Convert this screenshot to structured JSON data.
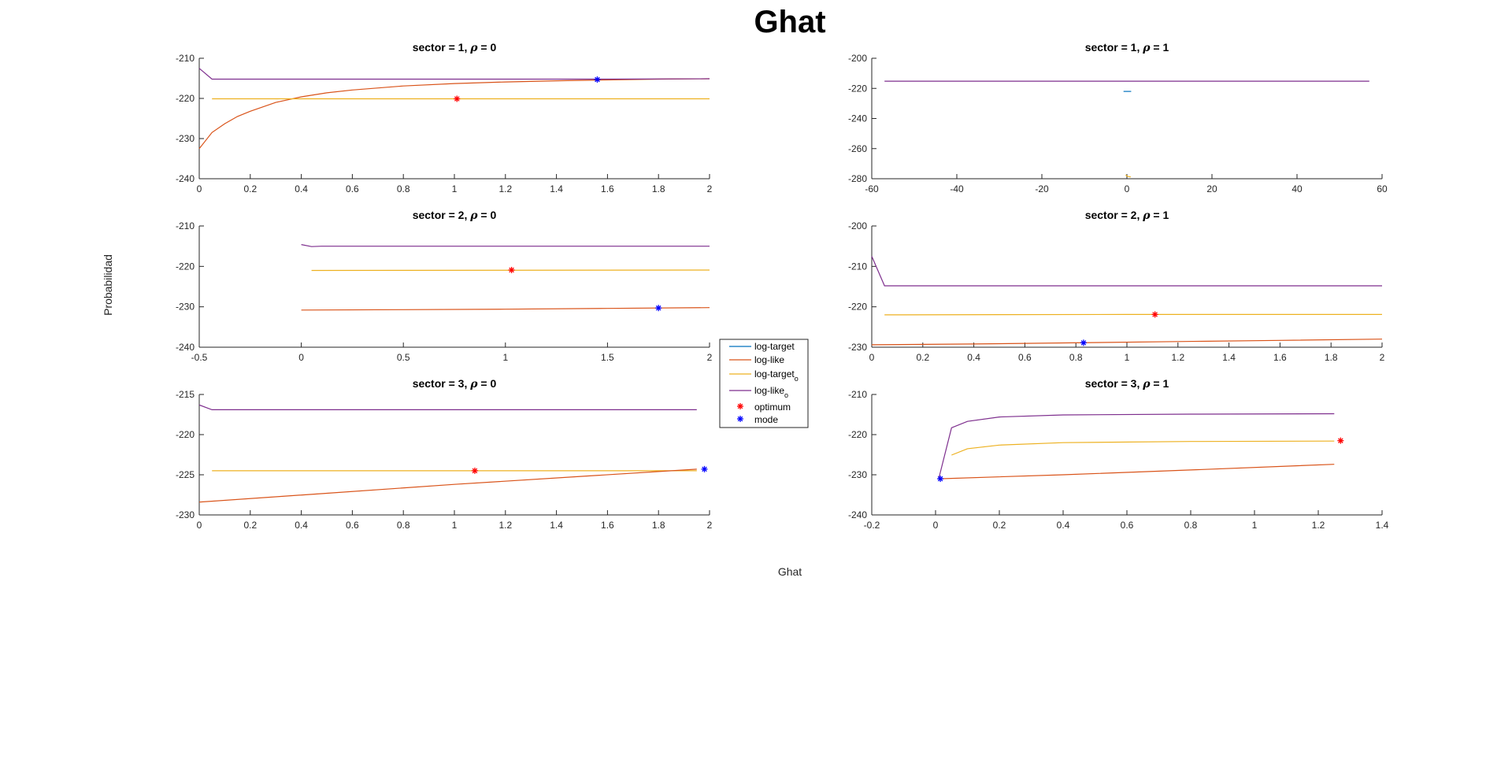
{
  "figure": {
    "title": "Ghat",
    "xlabel": "Ghat",
    "ylabel": "Probabilidad"
  },
  "colors": {
    "log_target": "#0072BD",
    "log_like": "#D95319",
    "log_target_o": "#EDB120",
    "log_like_o": "#7E2F8E",
    "optimum": "#FF0000",
    "mode": "#0000FF",
    "axis": "#262626"
  },
  "legend": {
    "entries": [
      {
        "key": "log_target",
        "label": "log-target",
        "sub": ""
      },
      {
        "key": "log_like",
        "label": "log-like",
        "sub": ""
      },
      {
        "key": "log_target_o",
        "label": "log-target",
        "sub": "o"
      },
      {
        "key": "log_like_o",
        "label": "log-like",
        "sub": "o"
      },
      {
        "key": "optimum",
        "label": "optimum",
        "sub": ""
      },
      {
        "key": "mode",
        "label": "mode",
        "sub": ""
      }
    ]
  },
  "chart_data": [
    {
      "type": "line",
      "title_prefix": "sector = 1, ",
      "title_symbol": "ρ",
      "title_suffix": " = 0",
      "xlim": [
        0,
        2
      ],
      "ylim": [
        -240,
        -210
      ],
      "xticks": [
        0,
        0.2,
        0.4,
        0.6,
        0.8,
        1,
        1.2,
        1.4,
        1.6,
        1.8,
        2
      ],
      "xtick_labels": [
        "0",
        "0.2",
        "0.4",
        "0.6",
        "0.8",
        "1",
        "1.2",
        "1.4",
        "1.6",
        "1.8",
        "2"
      ],
      "yticks": [
        -240,
        -230,
        -220,
        -210
      ],
      "ytick_labels": [
        "-240",
        "-230",
        "-220",
        "-210"
      ],
      "series": [
        {
          "key": "log_like",
          "x": [
            0,
            0.05,
            0.1,
            0.15,
            0.2,
            0.3,
            0.4,
            0.5,
            0.6,
            0.8,
            1.0,
            1.2,
            1.4,
            1.6,
            1.8,
            2.0
          ],
          "y": [
            -232.5,
            -228.5,
            -226.3,
            -224.5,
            -223.2,
            -221.0,
            -219.6,
            -218.6,
            -217.9,
            -216.9,
            -216.3,
            -215.9,
            -215.6,
            -215.4,
            -215.2,
            -215.1
          ]
        },
        {
          "key": "log_target_o",
          "x": [
            0.05,
            2.0
          ],
          "y": [
            -220.1,
            -220.1
          ]
        },
        {
          "key": "log_like_o",
          "x": [
            0,
            0.05,
            0.2,
            1.0,
            1.6,
            2.0
          ],
          "y": [
            -212.5,
            -215.2,
            -215.2,
            -215.2,
            -215.2,
            -215.1
          ]
        }
      ],
      "optimum": {
        "x": 1.01,
        "y": -220.1
      },
      "mode": {
        "x": 1.56,
        "y": -215.3
      }
    },
    {
      "type": "line",
      "title_prefix": "sector = 1, ",
      "title_symbol": "ρ",
      "title_suffix": " = 1",
      "xlim": [
        -60,
        60
      ],
      "ylim": [
        -280,
        -200
      ],
      "xticks": [
        -60,
        -40,
        -20,
        0,
        20,
        40,
        60
      ],
      "xtick_labels": [
        "-60",
        "-40",
        "-20",
        "0",
        "20",
        "40",
        "60"
      ],
      "yticks": [
        -280,
        -260,
        -240,
        -220,
        -200
      ],
      "ytick_labels": [
        "-280",
        "-260",
        "-240",
        "-220",
        "-200"
      ],
      "series": [
        {
          "key": "log_like_o",
          "x": [
            -57,
            57
          ],
          "y": [
            -215.2,
            -215.2
          ]
        },
        {
          "key": "log_target",
          "x": [
            -0.8,
            1.0
          ],
          "y": [
            -222.0,
            -222.0
          ]
        },
        {
          "key": "log_target_o",
          "x": [
            -0.3,
            0.2,
            0.9
          ],
          "y": [
            -277.5,
            -278.5,
            -278.8
          ]
        }
      ],
      "optimum": null,
      "mode": null
    },
    {
      "type": "line",
      "title_prefix": "sector = 2, ",
      "title_symbol": "ρ",
      "title_suffix": " = 0",
      "xlim": [
        -0.5,
        2
      ],
      "ylim": [
        -240,
        -210
      ],
      "xticks": [
        -0.5,
        0,
        0.5,
        1,
        1.5,
        2
      ],
      "xtick_labels": [
        "-0.5",
        "0",
        "0.5",
        "1",
        "1.5",
        "2"
      ],
      "yticks": [
        -240,
        -230,
        -220,
        -210
      ],
      "ytick_labels": [
        "-240",
        "-230",
        "-220",
        "-210"
      ],
      "series": [
        {
          "key": "log_like_o",
          "x": [
            0,
            0.05,
            0.1,
            2.0
          ],
          "y": [
            -214.6,
            -215.1,
            -215.0,
            -215.0
          ]
        },
        {
          "key": "log_target_o",
          "x": [
            0.05,
            2.0
          ],
          "y": [
            -221.0,
            -220.9
          ]
        },
        {
          "key": "log_like",
          "x": [
            0,
            0.5,
            1.0,
            1.5,
            2.0
          ],
          "y": [
            -230.8,
            -230.7,
            -230.6,
            -230.4,
            -230.2
          ]
        }
      ],
      "optimum": {
        "x": 1.03,
        "y": -220.9
      },
      "mode": {
        "x": 1.75,
        "y": -230.3
      }
    },
    {
      "type": "line",
      "title_prefix": "sector = 2, ",
      "title_symbol": "ρ",
      "title_suffix": " = 1",
      "xlim": [
        0,
        2
      ],
      "ylim": [
        -230,
        -200
      ],
      "xticks": [
        0,
        0.2,
        0.4,
        0.6,
        0.8,
        1,
        1.2,
        1.4,
        1.6,
        1.8,
        2
      ],
      "xtick_labels": [
        "0",
        "0.2",
        "0.4",
        "0.6",
        "0.8",
        "1",
        "1.2",
        "1.4",
        "1.6",
        "1.8",
        "2"
      ],
      "yticks": [
        -230,
        -220,
        -210,
        -200
      ],
      "ytick_labels": [
        "-230",
        "-220",
        "-210",
        "-200"
      ],
      "series": [
        {
          "key": "log_like_o",
          "x": [
            0,
            0.05,
            0.2,
            1.0,
            2.0
          ],
          "y": [
            -207.5,
            -214.8,
            -214.8,
            -214.8,
            -214.8
          ]
        },
        {
          "key": "log_target_o",
          "x": [
            0.05,
            1.0,
            2.0
          ],
          "y": [
            -222.0,
            -221.9,
            -221.9
          ]
        },
        {
          "key": "log_like",
          "x": [
            0,
            0.4,
            0.8,
            1.2,
            1.6,
            2.0
          ],
          "y": [
            -229.4,
            -229.2,
            -228.9,
            -228.6,
            -228.3,
            -228.0
          ]
        }
      ],
      "optimum": {
        "x": 1.11,
        "y": -221.9
      },
      "mode": {
        "x": 0.83,
        "y": -228.9
      }
    },
    {
      "type": "line",
      "title_prefix": "sector = 3, ",
      "title_symbol": "ρ",
      "title_suffix": " = 0",
      "xlim": [
        0,
        2
      ],
      "ylim": [
        -230,
        -215
      ],
      "xticks": [
        0,
        0.2,
        0.4,
        0.6,
        0.8,
        1,
        1.2,
        1.4,
        1.6,
        1.8,
        2
      ],
      "xtick_labels": [
        "0",
        "0.2",
        "0.4",
        "0.6",
        "0.8",
        "1",
        "1.2",
        "1.4",
        "1.6",
        "1.8",
        "2"
      ],
      "yticks": [
        -230,
        -225,
        -220,
        -215
      ],
      "ytick_labels": [
        "-230",
        "-225",
        "-220",
        "-215"
      ],
      "series": [
        {
          "key": "log_like_o",
          "x": [
            0,
            0.05,
            0.1,
            1.0,
            1.95
          ],
          "y": [
            -216.3,
            -216.9,
            -216.9,
            -216.9,
            -216.9
          ]
        },
        {
          "key": "log_target_o",
          "x": [
            0.05,
            1.95
          ],
          "y": [
            -224.5,
            -224.5
          ]
        },
        {
          "key": "log_like",
          "x": [
            0,
            0.5,
            1.0,
            1.5,
            1.95
          ],
          "y": [
            -228.4,
            -227.3,
            -226.2,
            -225.2,
            -224.3
          ]
        }
      ],
      "optimum": {
        "x": 1.08,
        "y": -224.5
      },
      "mode": {
        "x": 1.98,
        "y": -224.3
      }
    },
    {
      "type": "line",
      "title_prefix": "sector = 3, ",
      "title_symbol": "ρ",
      "title_suffix": " = 1",
      "xlim": [
        -0.2,
        1.4
      ],
      "ylim": [
        -240,
        -210
      ],
      "xticks": [
        -0.2,
        0,
        0.2,
        0.4,
        0.6,
        0.8,
        1,
        1.2,
        1.4
      ],
      "xtick_labels": [
        "-0.2",
        "0",
        "0.2",
        "0.4",
        "0.6",
        "0.8",
        "1",
        "1.2",
        "1.4"
      ],
      "yticks": [
        -240,
        -230,
        -220,
        -210
      ],
      "ytick_labels": [
        "-240",
        "-230",
        "-220",
        "-210"
      ],
      "series": [
        {
          "key": "log_like_o",
          "x": [
            0.01,
            0.05,
            0.1,
            0.2,
            0.4,
            0.8,
            1.25
          ],
          "y": [
            -231,
            -218.3,
            -216.7,
            -215.6,
            -215.1,
            -214.9,
            -214.8
          ]
        },
        {
          "key": "log_target_o",
          "x": [
            0.05,
            0.1,
            0.2,
            0.4,
            0.8,
            1.25
          ],
          "y": [
            -225.1,
            -223.5,
            -222.6,
            -222.0,
            -221.7,
            -221.6
          ]
        },
        {
          "key": "log_like",
          "x": [
            0.01,
            0.4,
            0.8,
            1.25
          ],
          "y": [
            -231.0,
            -230.0,
            -228.8,
            -227.4
          ]
        }
      ],
      "optimum": {
        "x": 1.27,
        "y": -221.5
      },
      "mode": {
        "x": 0.015,
        "y": -231.0
      }
    }
  ]
}
